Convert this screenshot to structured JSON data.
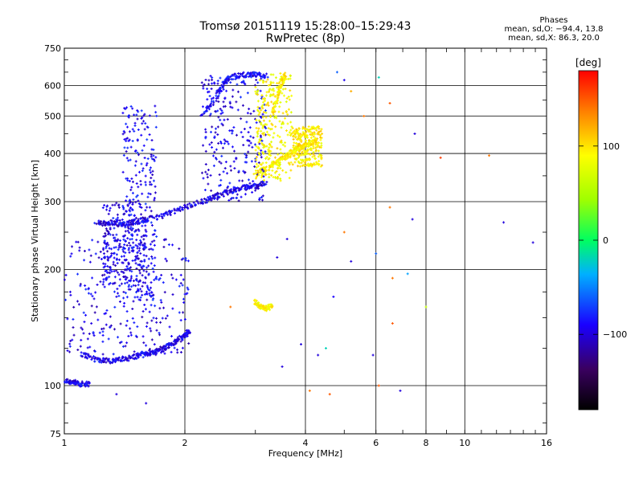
{
  "header": {
    "title_line1": "Tromsø 20151119 15:28:00–15:29:43",
    "title_line2": "RwPretec (8p)"
  },
  "phase_stats": {
    "title": "Phases",
    "line_o": "mean, sd,O: −94.4, 13.8",
    "line_x": "mean, sd,X:  86.3, 20.0"
  },
  "colorbar": {
    "label": "[deg]",
    "range": [
      -180,
      180
    ],
    "ticks": [
      {
        "value": 100,
        "label": "100"
      },
      {
        "value": 0,
        "label": "0"
      },
      {
        "value": -100,
        "label": "−100"
      }
    ]
  },
  "colors": {
    "o_mode": "#0030ff",
    "x_mode": "#e6e600",
    "grid": "#000000"
  },
  "chart_data": {
    "type": "scatter",
    "title": "Tromsø 20151119 15:28:00–15:29:43",
    "subtitle": "RwPretec (8p)",
    "xlabel": "Frequency [MHz]",
    "ylabel": "Stationary phase Virtual Height [km]",
    "xscale": "log",
    "yscale": "log",
    "xlim": [
      1,
      16
    ],
    "ylim": [
      75,
      750
    ],
    "xticks": [
      {
        "value": 1,
        "label": "1"
      },
      {
        "value": 2,
        "label": "2"
      },
      {
        "value": 4,
        "label": "4"
      },
      {
        "value": 6,
        "label": "6"
      },
      {
        "value": 8,
        "label": "8"
      },
      {
        "value": 10,
        "label": "10"
      },
      {
        "value": 16,
        "label": "16"
      }
    ],
    "xgrid": [
      2,
      4,
      6,
      8,
      10
    ],
    "yticks": [
      {
        "value": 75,
        "label": "75"
      },
      {
        "value": 100,
        "label": "100"
      },
      {
        "value": 200,
        "label": "200"
      },
      {
        "value": 300,
        "label": "300"
      },
      {
        "value": 400,
        "label": "400"
      },
      {
        "value": 500,
        "label": "500"
      },
      {
        "value": 600,
        "label": "600"
      },
      {
        "value": 750,
        "label": "750"
      }
    ],
    "ygrid": [
      100,
      200,
      300,
      400,
      500,
      600
    ],
    "color_by": "phase [deg]",
    "traces": [
      {
        "mode": "O",
        "phase": -95,
        "points": [
          [
            1.0,
            103
          ],
          [
            1.05,
            102
          ],
          [
            1.1,
            101
          ],
          [
            1.15,
            101
          ]
        ]
      },
      {
        "mode": "O",
        "phase": -95,
        "points": [
          [
            1.1,
            121
          ],
          [
            1.2,
            117
          ],
          [
            1.3,
            116
          ],
          [
            1.4,
            117
          ],
          [
            1.5,
            119
          ],
          [
            1.6,
            121
          ],
          [
            1.7,
            123
          ],
          [
            1.8,
            126
          ],
          [
            1.9,
            130
          ],
          [
            2.0,
            135
          ],
          [
            2.05,
            138
          ]
        ]
      },
      {
        "mode": "O",
        "phase": -95,
        "points": [
          [
            1.2,
            265
          ],
          [
            1.3,
            262
          ],
          [
            1.4,
            263
          ],
          [
            1.5,
            266
          ],
          [
            1.6,
            269
          ],
          [
            1.8,
            278
          ],
          [
            2.0,
            290
          ],
          [
            2.2,
            300
          ],
          [
            2.4,
            310
          ],
          [
            2.6,
            320
          ],
          [
            2.8,
            326
          ],
          [
            3.0,
            330
          ],
          [
            3.2,
            336
          ]
        ]
      },
      {
        "mode": "O",
        "phase": -90,
        "points": [
          [
            2.2,
            500
          ],
          [
            2.4,
            560
          ],
          [
            2.5,
            610
          ],
          [
            2.6,
            630
          ],
          [
            2.8,
            640
          ],
          [
            3.0,
            640
          ],
          [
            3.2,
            635
          ]
        ]
      },
      {
        "mode": "X",
        "phase": 95,
        "points": [
          [
            3.0,
            355
          ],
          [
            3.2,
            365
          ],
          [
            3.4,
            380
          ],
          [
            3.6,
            395
          ],
          [
            3.8,
            410
          ],
          [
            4.0,
            420
          ],
          [
            4.3,
            435
          ]
        ]
      },
      {
        "mode": "X",
        "phase": 95,
        "points": [
          [
            3.3,
            500
          ],
          [
            3.4,
            560
          ],
          [
            3.5,
            620
          ],
          [
            3.55,
            640
          ]
        ]
      },
      {
        "mode": "X",
        "phase": 90,
        "points": [
          [
            3.0,
            165
          ],
          [
            3.1,
            160
          ],
          [
            3.2,
            158
          ],
          [
            3.3,
            162
          ]
        ]
      }
    ],
    "clusters": [
      {
        "mode": "O",
        "phase": -95,
        "x": [
          1.0,
          2.05
        ],
        "y": [
          120,
          240
        ]
      },
      {
        "mode": "O",
        "phase": -90,
        "x": [
          1.4,
          1.7
        ],
        "y": [
          160,
          540
        ]
      },
      {
        "mode": "O",
        "phase": -95,
        "x": [
          1.25,
          1.6
        ],
        "y": [
          180,
          300
        ]
      },
      {
        "mode": "O",
        "phase": -95,
        "x": [
          2.2,
          3.2
        ],
        "y": [
          300,
          640
        ]
      },
      {
        "mode": "X",
        "phase": 90,
        "x": [
          3.0,
          3.7
        ],
        "y": [
          340,
          650
        ]
      },
      {
        "mode": "X",
        "phase": 95,
        "x": [
          3.7,
          4.4
        ],
        "y": [
          370,
          470
        ]
      }
    ],
    "scattered": [
      {
        "x": 4.8,
        "y": 650,
        "phase": -60
      },
      {
        "x": 5.0,
        "y": 620,
        "phase": -95
      },
      {
        "x": 5.2,
        "y": 580,
        "phase": 120
      },
      {
        "x": 5.6,
        "y": 500,
        "phase": 140
      },
      {
        "x": 6.5,
        "y": 540,
        "phase": 150
      },
      {
        "x": 7.5,
        "y": 450,
        "phase": -100
      },
      {
        "x": 8.7,
        "y": 390,
        "phase": 160
      },
      {
        "x": 11.5,
        "y": 395,
        "phase": 140
      },
      {
        "x": 12.5,
        "y": 265,
        "phase": -100
      },
      {
        "x": 14.8,
        "y": 235,
        "phase": -100
      },
      {
        "x": 6.1,
        "y": 630,
        "phase": -20
      },
      {
        "x": 6.5,
        "y": 290,
        "phase": 140
      },
      {
        "x": 7.4,
        "y": 270,
        "phase": -100
      },
      {
        "x": 5.0,
        "y": 250,
        "phase": 140
      },
      {
        "x": 6.0,
        "y": 220,
        "phase": -60
      },
      {
        "x": 5.2,
        "y": 210,
        "phase": -100
      },
      {
        "x": 6.6,
        "y": 190,
        "phase": 140
      },
      {
        "x": 7.2,
        "y": 195,
        "phase": -40
      },
      {
        "x": 8.0,
        "y": 160,
        "phase": 60
      },
      {
        "x": 6.6,
        "y": 145,
        "phase": 150
      },
      {
        "x": 4.7,
        "y": 170,
        "phase": -90
      },
      {
        "x": 4.5,
        "y": 125,
        "phase": -20
      },
      {
        "x": 4.3,
        "y": 120,
        "phase": -100
      },
      {
        "x": 5.9,
        "y": 120,
        "phase": -100
      },
      {
        "x": 6.9,
        "y": 97,
        "phase": -100
      },
      {
        "x": 4.1,
        "y": 97,
        "phase": 140
      },
      {
        "x": 4.6,
        "y": 95,
        "phase": 150
      },
      {
        "x": 6.1,
        "y": 100,
        "phase": 150
      },
      {
        "x": 3.5,
        "y": 112,
        "phase": -100
      },
      {
        "x": 3.9,
        "y": 128,
        "phase": -100
      },
      {
        "x": 3.6,
        "y": 240,
        "phase": -100
      },
      {
        "x": 3.4,
        "y": 215,
        "phase": -100
      },
      {
        "x": 2.6,
        "y": 160,
        "phase": 140
      },
      {
        "x": 1.6,
        "y": 90,
        "phase": -100
      },
      {
        "x": 1.35,
        "y": 95,
        "phase": -100
      }
    ]
  }
}
